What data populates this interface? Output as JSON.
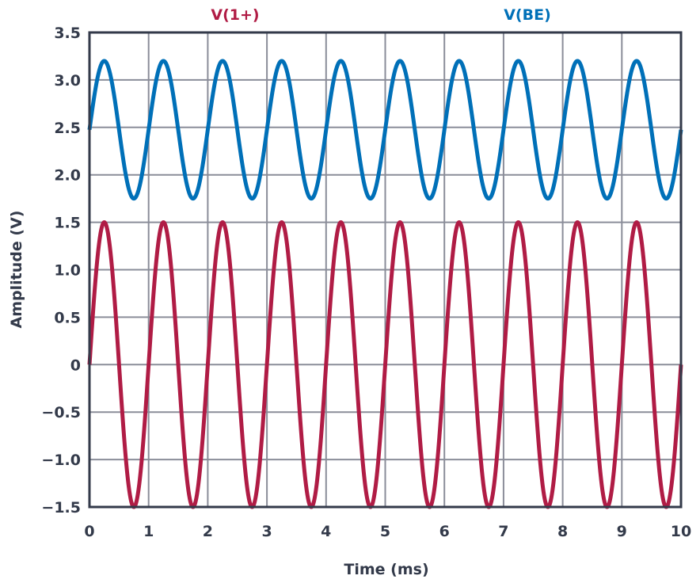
{
  "chart_data": {
    "type": "line",
    "title": "",
    "xlabel": "Time (ms)",
    "ylabel": "Amplitude (V)",
    "xlim": [
      0,
      10
    ],
    "ylim": [
      -1.5,
      3.5
    ],
    "xticks": [
      "0",
      "1",
      "2",
      "3",
      "4",
      "5",
      "6",
      "7",
      "8",
      "9",
      "10"
    ],
    "yticks": [
      "−1.5",
      "−1.0",
      "−0.5",
      "0",
      "0.5",
      "1.0",
      "1.5",
      "2.0",
      "2.5",
      "3.0",
      "3.5"
    ],
    "grid": true,
    "series": [
      {
        "name": "V(1+)",
        "color": "#b01c45",
        "waveform": "sine",
        "frequency_khz": 1,
        "amplitude_v": 1.5,
        "offset_v": 0,
        "phase_deg": 0
      },
      {
        "name": "V(BE)",
        "color": "#0070b8",
        "waveform": "sine",
        "frequency_khz": 1,
        "amplitude_v": 0.725,
        "offset_v": 2.475,
        "phase_deg": 0
      }
    ]
  }
}
